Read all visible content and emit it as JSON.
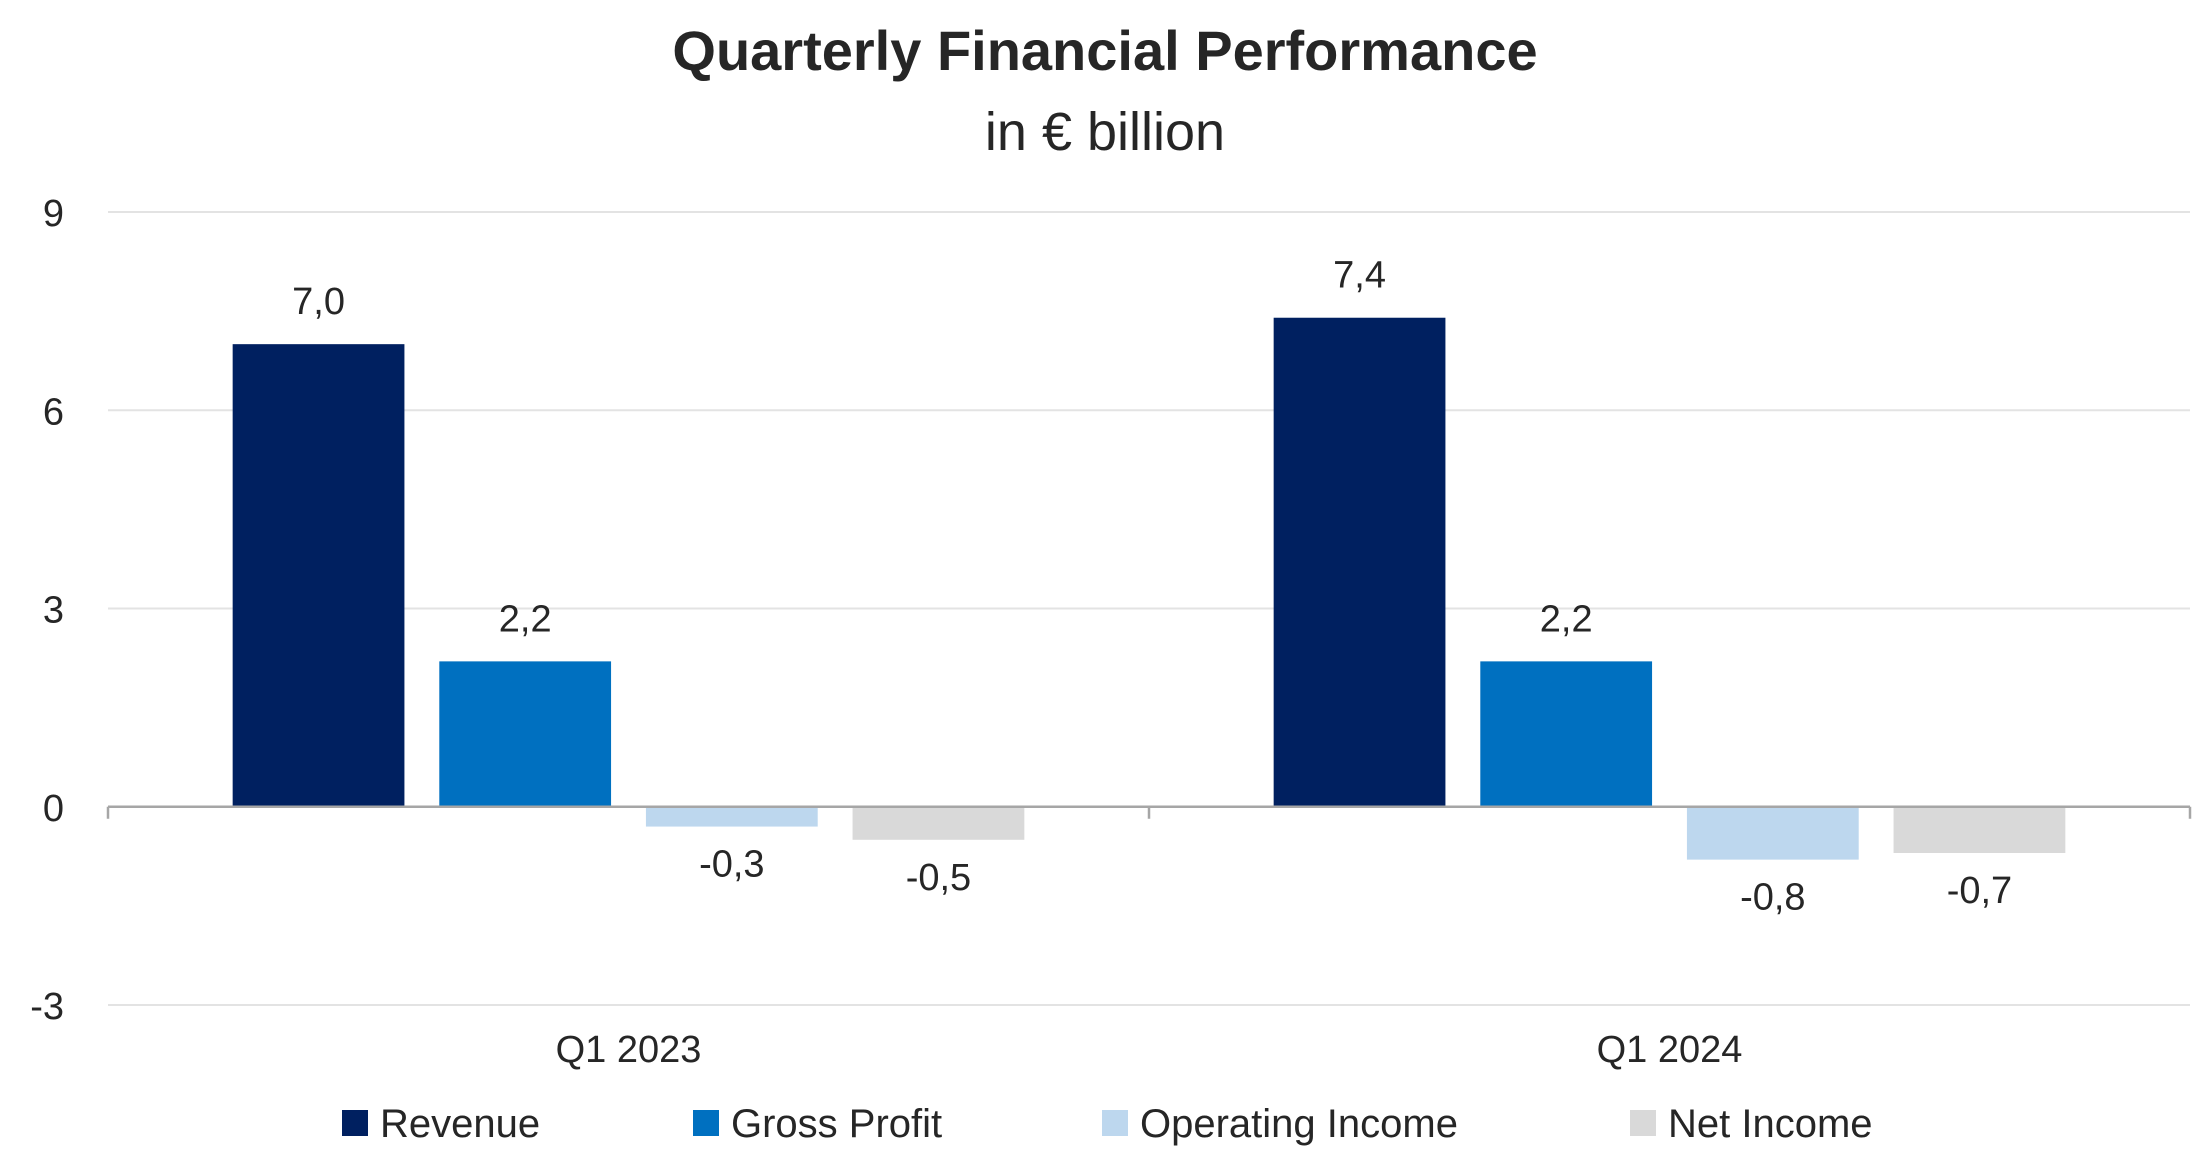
{
  "chart_data": {
    "type": "bar",
    "title": "Quarterly Financial Performance",
    "subtitle": "in € billion",
    "categories": [
      "Q1 2023",
      "Q1 2024"
    ],
    "series": [
      {
        "name": "Revenue",
        "values": [
          7.0,
          7.4
        ],
        "labels": [
          "7,0",
          "7,4"
        ],
        "color": "#002060"
      },
      {
        "name": "Gross Profit",
        "values": [
          2.2,
          2.2
        ],
        "labels": [
          "2,2",
          "2,2"
        ],
        "color": "#0070C0"
      },
      {
        "name": "Operating Income",
        "values": [
          -0.3,
          -0.8
        ],
        "labels": [
          "-0,3",
          "-0,8"
        ],
        "color": "#BDD7EE"
      },
      {
        "name": "Net Income",
        "values": [
          -0.5,
          -0.7
        ],
        "labels": [
          "-0,5",
          "-0,7"
        ],
        "color": "#D9D9D9"
      }
    ],
    "yticks": [
      -3,
      0,
      3,
      6,
      9
    ],
    "ytick_labels": [
      "-3",
      "0",
      "3",
      "6",
      "9"
    ],
    "ylim": [
      -3,
      9
    ],
    "xlabel": "",
    "ylabel": "",
    "grid": true,
    "legend_position": "bottom"
  }
}
